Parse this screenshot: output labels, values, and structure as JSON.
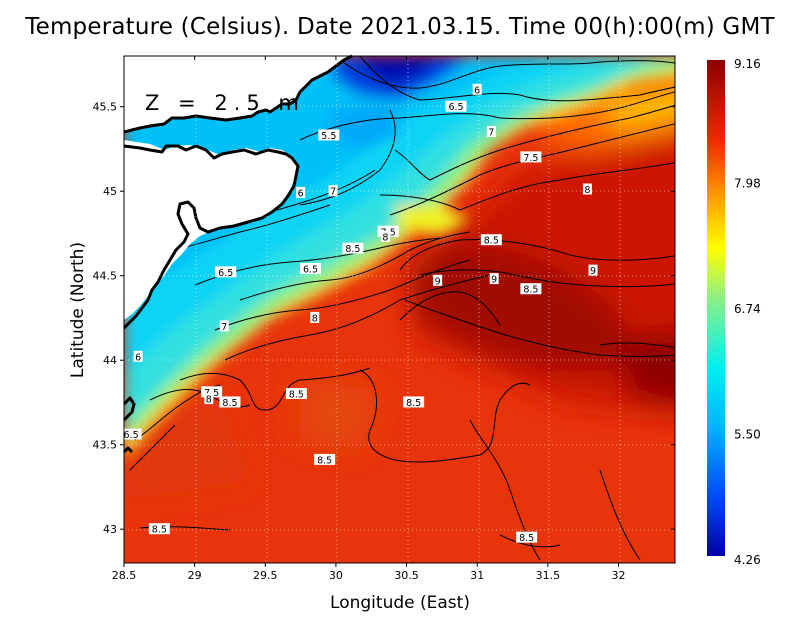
{
  "title": "Temperature (Celsius). Date 2021.03.15. Time 00(h):00(m)  GMT",
  "depth_label": "Z = 2.5 m",
  "xlabel": "Longitude (East)",
  "ylabel": "Latitude (North)",
  "x_ticks": [
    "28.5",
    "29",
    "29.5",
    "30",
    "30.5",
    "31",
    "31.5",
    "32"
  ],
  "y_ticks": [
    "45.5",
    "45",
    "44.5",
    "44",
    "43.5",
    "43"
  ],
  "colorbar": {
    "min": 4.26,
    "max": 9.16,
    "labels": [
      "9.16",
      "7.98",
      "6.74",
      "5.50",
      "4.26"
    ]
  },
  "chart_data": {
    "type": "heatmap",
    "title": "Temperature (Celsius). Date 2021.03.15. Time 00(h):00(m)  GMT",
    "xlabel": "Longitude (East)",
    "ylabel": "Latitude (North)",
    "xlim": [
      28.5,
      32.4
    ],
    "ylim": [
      42.8,
      45.8
    ],
    "grid": true,
    "colormap": [
      "#0000a8",
      "#0064ff",
      "#00e0ff",
      "#8cf084",
      "#ffff00",
      "#ff9a00",
      "#f02800",
      "#8c0000"
    ],
    "value_range": [
      4.26,
      9.16
    ],
    "contour_labels": [
      {
        "text": "6",
        "lon": 31.0,
        "lat": 45.6
      },
      {
        "text": "6.5",
        "lon": 30.85,
        "lat": 45.5
      },
      {
        "text": "5.5",
        "lon": 29.95,
        "lat": 45.33
      },
      {
        "text": "7",
        "lon": 31.1,
        "lat": 45.35
      },
      {
        "text": "7.5",
        "lon": 31.38,
        "lat": 45.2
      },
      {
        "text": "8",
        "lon": 31.78,
        "lat": 45.01
      },
      {
        "text": "6",
        "lon": 29.75,
        "lat": 44.99
      },
      {
        "text": "7",
        "lon": 29.98,
        "lat": 45.0
      },
      {
        "text": "7.5",
        "lon": 30.37,
        "lat": 44.76
      },
      {
        "text": "8",
        "lon": 30.35,
        "lat": 44.73
      },
      {
        "text": "8.5",
        "lon": 30.12,
        "lat": 44.66
      },
      {
        "text": "8.5",
        "lon": 31.1,
        "lat": 44.71
      },
      {
        "text": "9",
        "lon": 31.82,
        "lat": 44.53
      },
      {
        "text": "6.5",
        "lon": 29.22,
        "lat": 44.52
      },
      {
        "text": "6.5",
        "lon": 29.82,
        "lat": 44.54
      },
      {
        "text": "9",
        "lon": 30.72,
        "lat": 44.47
      },
      {
        "text": "9",
        "lon": 31.12,
        "lat": 44.48
      },
      {
        "text": "8.5",
        "lon": 31.38,
        "lat": 44.42
      },
      {
        "text": "7",
        "lon": 29.21,
        "lat": 44.2
      },
      {
        "text": "8",
        "lon": 29.85,
        "lat": 44.25
      },
      {
        "text": "6",
        "lon": 28.6,
        "lat": 44.02
      },
      {
        "text": "7.5",
        "lon": 29.12,
        "lat": 43.81
      },
      {
        "text": "8",
        "lon": 29.1,
        "lat": 43.77
      },
      {
        "text": "8.5",
        "lon": 29.25,
        "lat": 43.75
      },
      {
        "text": "8.5",
        "lon": 29.72,
        "lat": 43.8
      },
      {
        "text": "8.5",
        "lon": 30.55,
        "lat": 43.75
      },
      {
        "text": "6.5",
        "lon": 28.55,
        "lat": 43.56
      },
      {
        "text": "8.5",
        "lon": 29.92,
        "lat": 43.41
      },
      {
        "text": "8.5",
        "lon": 28.75,
        "lat": 43.0
      },
      {
        "text": "8.5",
        "lon": 31.35,
        "lat": 42.95
      }
    ]
  }
}
